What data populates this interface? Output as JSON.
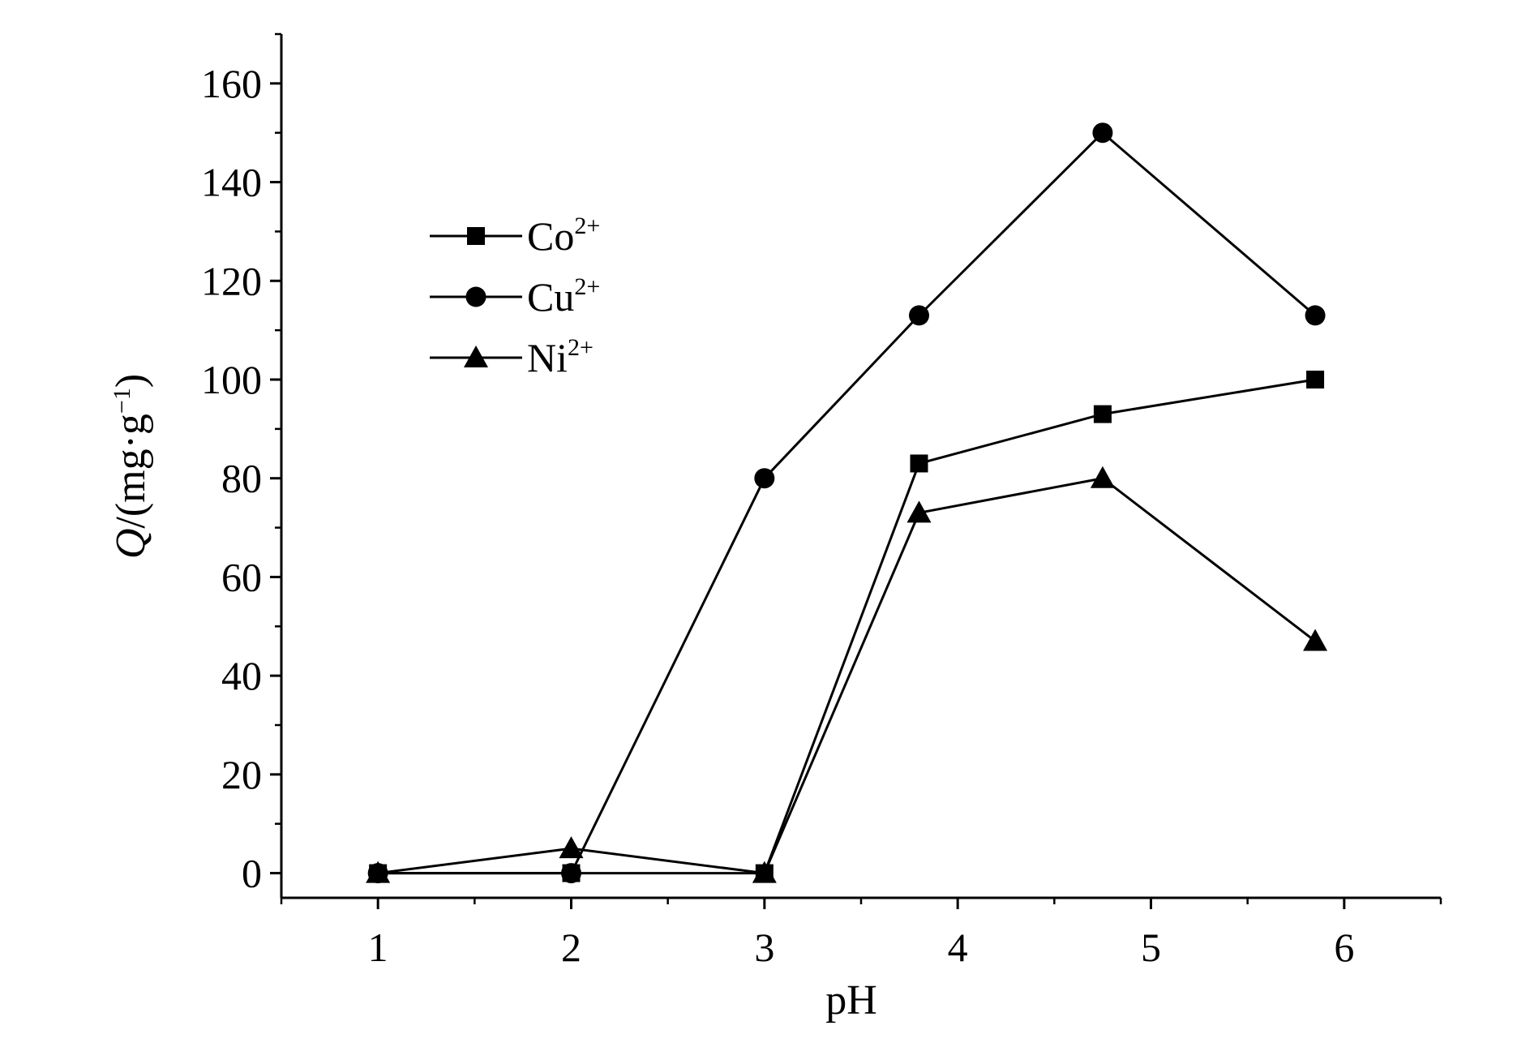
{
  "chart_data": {
    "type": "line",
    "title": "",
    "xlabel": "pH",
    "ylabel": {
      "italic": "Q",
      "prefix": "/(mg·g",
      "sup": "−1",
      "suffix": ")"
    },
    "xlim": [
      0.5,
      6.5
    ],
    "ylim": [
      -5,
      170
    ],
    "xticks": [
      1,
      2,
      3,
      4,
      5,
      6
    ],
    "yticks": [
      0,
      20,
      40,
      60,
      80,
      100,
      120,
      140,
      160
    ],
    "grid": false,
    "legend_position": "upper-left",
    "line_color": "#000000",
    "series": [
      {
        "name": "Co",
        "charge": "2+",
        "marker": "square",
        "x": [
          1,
          2,
          3,
          3.8,
          4.75,
          5.85
        ],
        "y": [
          0,
          0,
          0,
          83,
          93,
          100
        ]
      },
      {
        "name": "Cu",
        "charge": "2+",
        "marker": "circle",
        "x": [
          1,
          2,
          3,
          3.8,
          4.75,
          5.85
        ],
        "y": [
          0,
          0,
          80,
          113,
          150,
          113
        ]
      },
      {
        "name": "Ni",
        "charge": "2+",
        "marker": "triangle",
        "x": [
          1,
          2,
          3,
          3.8,
          4.75,
          5.85
        ],
        "y": [
          0,
          5,
          0,
          73,
          80,
          47
        ]
      }
    ]
  }
}
